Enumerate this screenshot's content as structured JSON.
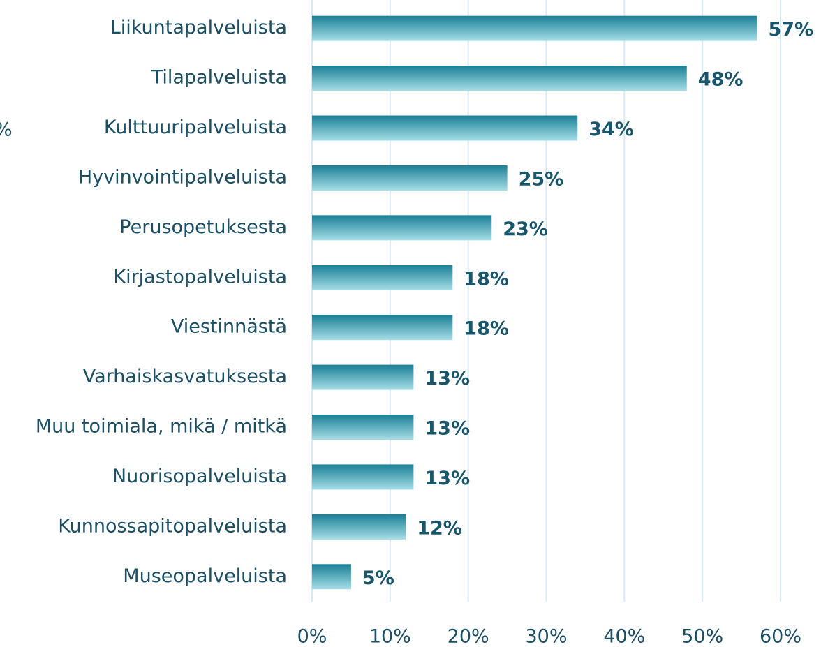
{
  "chart_data": {
    "type": "barh",
    "annotation": "%",
    "categories": [
      "Liikuntapalveluista",
      "Tilapalveluista",
      "Kulttuuripalveluista",
      "Hyvinvointipalveluista",
      "Perusopetuksesta",
      "Kirjastopalveluista",
      "Viestinnästä",
      "Varhaiskasvatuksesta",
      "Muu toimiala, mikä / mitkä",
      "Nuorisopalveluista",
      "Kunnossapitopalveluista",
      "Museopalveluista"
    ],
    "values": [
      57,
      48,
      34,
      25,
      23,
      18,
      18,
      13,
      13,
      13,
      12,
      5
    ],
    "value_labels": [
      "57%",
      "48%",
      "34%",
      "25%",
      "23%",
      "18%",
      "18%",
      "13%",
      "13%",
      "13%",
      "12%",
      "5%"
    ],
    "color": "#1a7f95",
    "color_light": "#a6dee7",
    "label_color": "#17566b",
    "xlim": [
      0,
      60
    ],
    "xticks": [
      {
        "value": 0,
        "label": "0%"
      },
      {
        "value": 10,
        "label": "10%"
      },
      {
        "value": 20,
        "label": "20%"
      },
      {
        "value": 30,
        "label": "30%"
      },
      {
        "value": 40,
        "label": "40%"
      },
      {
        "value": 50,
        "label": "50%"
      },
      {
        "value": 60,
        "label": "60%"
      }
    ],
    "grid": true
  }
}
